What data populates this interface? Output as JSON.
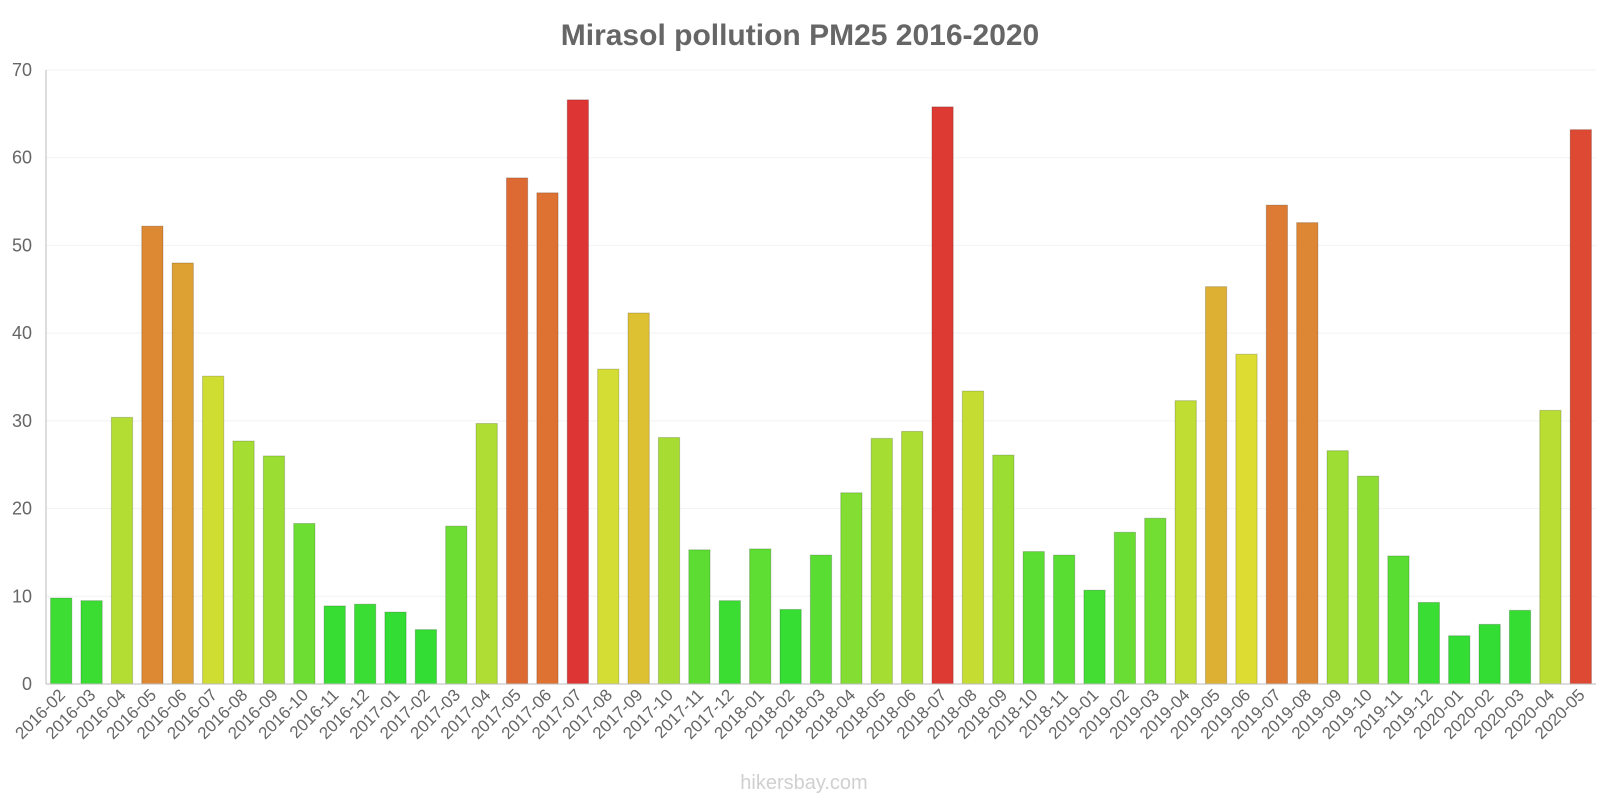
{
  "chart_data": {
    "type": "bar",
    "title": "Mirasol pollution PM25 2016-2020",
    "xlabel": "",
    "ylabel": "",
    "ylim": [
      0,
      70
    ],
    "yticks": [
      "0",
      "10",
      "20",
      "30",
      "40",
      "50",
      "60",
      "70"
    ],
    "grid": true,
    "categories": [
      "2016-02",
      "2016-03",
      "2016-04",
      "2016-05",
      "2016-06",
      "2016-07",
      "2016-08",
      "2016-09",
      "2016-10",
      "2016-11",
      "2016-12",
      "2017-01",
      "2017-02",
      "2017-03",
      "2017-04",
      "2017-05",
      "2017-06",
      "2017-07",
      "2017-08",
      "2017-09",
      "2017-10",
      "2017-11",
      "2017-12",
      "2018-01",
      "2018-02",
      "2018-03",
      "2018-04",
      "2018-05",
      "2018-06",
      "2018-07",
      "2018-08",
      "2018-09",
      "2018-10",
      "2018-11",
      "2019-01",
      "2019-02",
      "2019-03",
      "2019-04",
      "2019-05",
      "2019-06",
      "2019-07",
      "2019-08",
      "2019-09",
      "2019-10",
      "2019-11",
      "2019-12",
      "2020-01",
      "2020-02",
      "2020-03",
      "2020-04",
      "2020-05"
    ],
    "values": [
      9.8,
      9.5,
      30.4,
      52.2,
      48.0,
      35.1,
      27.7,
      26.0,
      18.3,
      8.9,
      9.1,
      8.2,
      6.2,
      18.0,
      29.7,
      57.7,
      56.0,
      66.6,
      35.9,
      42.3,
      28.1,
      15.3,
      9.5,
      15.4,
      8.5,
      14.7,
      21.8,
      28.0,
      28.8,
      65.8,
      33.4,
      26.1,
      15.1,
      14.7,
      10.7,
      17.3,
      18.9,
      32.3,
      45.3,
      37.6,
      54.6,
      52.6,
      26.6,
      23.7,
      14.6,
      9.3,
      5.5,
      6.8,
      8.4,
      31.2,
      63.2
    ]
  },
  "footer": {
    "watermark": "hikersbay.com"
  },
  "colors": {
    "title": "#666666",
    "axis_text": "#666666",
    "axis_line": "#bbbbbb",
    "grid": "#f2f2f2",
    "watermark": "#d0d0d0",
    "scale_low": "#33dd33",
    "scale_mid": "#dddd33",
    "scale_high": "#dd3333"
  }
}
